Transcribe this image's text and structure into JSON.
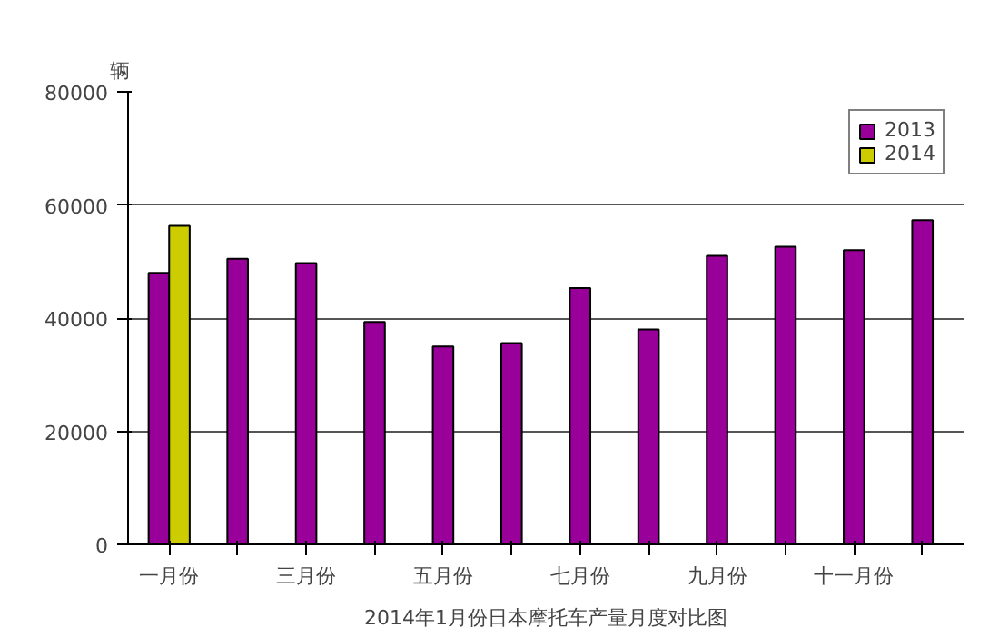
{
  "chart_data": {
    "type": "bar",
    "title": "2014年1月份日本摩托车产量月度对比图",
    "ylabel": "辆",
    "categories": [
      "一月份",
      null,
      "三月份",
      null,
      "五月份",
      null,
      "七月份",
      null,
      "九月份",
      null,
      "十一月份",
      null
    ],
    "series": [
      {
        "name": "2013",
        "color": "#990099",
        "values": [
          48000,
          50500,
          49700,
          39300,
          35000,
          35600,
          45300,
          38000,
          51000,
          52600,
          52000,
          57300
        ]
      },
      {
        "name": "2014",
        "color": "#cccc00",
        "values": [
          56300,
          null,
          null,
          null,
          null,
          null,
          null,
          null,
          null,
          null,
          null,
          null
        ]
      }
    ],
    "ylim": [
      0,
      80000
    ],
    "yticks": [
      0,
      20000,
      40000,
      60000,
      80000
    ],
    "grid": "y",
    "legend": "top right"
  }
}
